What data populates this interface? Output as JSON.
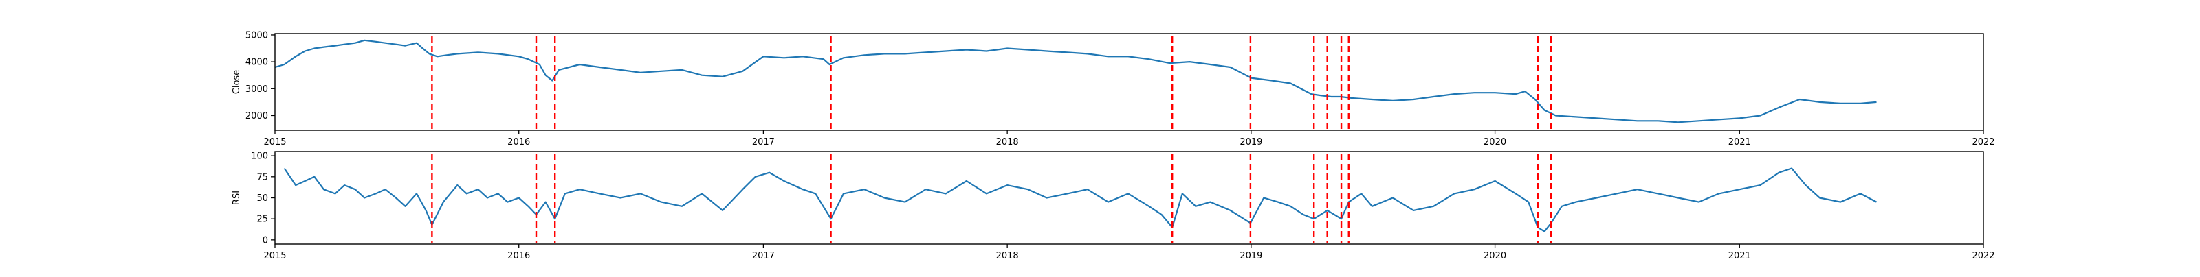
{
  "chart_data": [
    {
      "type": "line",
      "ylabel": "Close",
      "xlabel": "",
      "title": "",
      "xlim": [
        "2015-01-01",
        "2022-01-01"
      ],
      "ylim": [
        1450,
        5050
      ],
      "yticks": [
        2000,
        3000,
        4000,
        5000
      ],
      "xticks": [
        "2015",
        "2016",
        "2017",
        "2018",
        "2019",
        "2020",
        "2021",
        "2022"
      ],
      "line_color": "#1f77b4",
      "series": [
        {
          "x": [
            "2015-01-01",
            "2015-01-15",
            "2015-02-01",
            "2015-02-15",
            "2015-03-01",
            "2015-03-15",
            "2015-04-01",
            "2015-04-15",
            "2015-05-01",
            "2015-05-15",
            "2015-06-01",
            "2015-06-15",
            "2015-07-01",
            "2015-07-15",
            "2015-08-01",
            "2015-08-10",
            "2015-08-20",
            "2015-09-01",
            "2015-09-15",
            "2015-10-01",
            "2015-11-01",
            "2015-12-01",
            "2016-01-01",
            "2016-01-15",
            "2016-02-01",
            "2016-02-10",
            "2016-02-20",
            "2016-03-01",
            "2016-04-01",
            "2016-05-01",
            "2016-06-01",
            "2016-07-01",
            "2016-08-01",
            "2016-09-01",
            "2016-10-01",
            "2016-11-01",
            "2016-12-01",
            "2017-01-01",
            "2017-02-01",
            "2017-03-01",
            "2017-04-01",
            "2017-04-10",
            "2017-05-01",
            "2017-06-01",
            "2017-07-01",
            "2017-08-01",
            "2017-09-01",
            "2017-10-01",
            "2017-11-01",
            "2017-12-01",
            "2018-01-01",
            "2018-02-01",
            "2018-03-01",
            "2018-04-01",
            "2018-05-01",
            "2018-06-01",
            "2018-07-01",
            "2018-08-01",
            "2018-09-01",
            "2018-10-01",
            "2018-11-01",
            "2018-12-01",
            "2019-01-01",
            "2019-02-01",
            "2019-03-01",
            "2019-04-01",
            "2019-04-15",
            "2019-05-01",
            "2019-05-15",
            "2019-06-01",
            "2019-07-01",
            "2019-08-01",
            "2019-09-01",
            "2019-10-01",
            "2019-11-01",
            "2019-12-01",
            "2020-01-01",
            "2020-02-01",
            "2020-02-15",
            "2020-03-01",
            "2020-03-15",
            "2020-04-01",
            "2020-05-01",
            "2020-06-01",
            "2020-07-01",
            "2020-08-01",
            "2020-09-01",
            "2020-10-01",
            "2020-11-01",
            "2020-12-01",
            "2021-01-01",
            "2021-02-01",
            "2021-03-01",
            "2021-04-01",
            "2021-05-01",
            "2021-06-01",
            "2021-07-01",
            "2021-07-25"
          ],
          "values": [
            3800,
            3900,
            4200,
            4400,
            4500,
            4550,
            4600,
            4650,
            4700,
            4800,
            4750,
            4700,
            4650,
            4600,
            4700,
            4500,
            4300,
            4200,
            4250,
            4300,
            4350,
            4300,
            4200,
            4100,
            3900,
            3500,
            3300,
            3700,
            3900,
            3800,
            3700,
            3600,
            3650,
            3700,
            3500,
            3450,
            3650,
            4200,
            4150,
            4200,
            4100,
            3900,
            4150,
            4250,
            4300,
            4300,
            4350,
            4400,
            4450,
            4400,
            4500,
            4450,
            4400,
            4350,
            4300,
            4200,
            4200,
            4100,
            3950,
            4000,
            3900,
            3800,
            3400,
            3300,
            3200,
            2800,
            2750,
            2700,
            2700,
            2650,
            2600,
            2550,
            2600,
            2700,
            2800,
            2850,
            2850,
            2800,
            2900,
            2600,
            2200,
            2000,
            1950,
            1900,
            1850,
            1800,
            1800,
            1750,
            1800,
            1850,
            1900,
            2000,
            2300,
            2600,
            2500,
            2450,
            2450,
            2500
          ]
        }
      ],
      "vlines": [
        "2015-08-24",
        "2016-01-27",
        "2016-02-24",
        "2017-04-12",
        "2018-09-05",
        "2018-12-31",
        "2019-04-05",
        "2019-04-25",
        "2019-05-16",
        "2019-05-27",
        "2020-03-05",
        "2020-03-25"
      ],
      "vline_color": "#ff0000"
    },
    {
      "type": "line",
      "ylabel": "RSI",
      "xlabel": "",
      "title": "",
      "xlim": [
        "2015-01-01",
        "2022-01-01"
      ],
      "ylim": [
        -5,
        105
      ],
      "yticks": [
        0,
        25,
        50,
        75,
        100
      ],
      "xticks": [
        "2015",
        "2016",
        "2017",
        "2018",
        "2019",
        "2020",
        "2021",
        "2022"
      ],
      "line_color": "#1f77b4",
      "series": [
        {
          "x": [
            "2015-01-15",
            "2015-02-01",
            "2015-02-15",
            "2015-03-01",
            "2015-03-15",
            "2015-04-01",
            "2015-04-15",
            "2015-05-01",
            "2015-05-15",
            "2015-06-01",
            "2015-06-15",
            "2015-07-01",
            "2015-07-15",
            "2015-08-01",
            "2015-08-15",
            "2015-08-24",
            "2015-09-10",
            "2015-10-01",
            "2015-10-15",
            "2015-11-01",
            "2015-11-15",
            "2015-12-01",
            "2015-12-15",
            "2016-01-01",
            "2016-01-15",
            "2016-01-27",
            "2016-02-10",
            "2016-02-24",
            "2016-03-10",
            "2016-04-01",
            "2016-05-01",
            "2016-06-01",
            "2016-07-01",
            "2016-08-01",
            "2016-09-01",
            "2016-10-01",
            "2016-11-01",
            "2016-12-01",
            "2016-12-20",
            "2017-01-10",
            "2017-02-01",
            "2017-03-01",
            "2017-03-20",
            "2017-04-12",
            "2017-05-01",
            "2017-06-01",
            "2017-07-01",
            "2017-08-01",
            "2017-09-01",
            "2017-10-01",
            "2017-11-01",
            "2017-12-01",
            "2018-01-01",
            "2018-02-01",
            "2018-03-01",
            "2018-04-01",
            "2018-05-01",
            "2018-06-01",
            "2018-07-01",
            "2018-08-01",
            "2018-08-20",
            "2018-09-05",
            "2018-09-20",
            "2018-10-10",
            "2018-11-01",
            "2018-12-01",
            "2018-12-31",
            "2019-01-20",
            "2019-02-10",
            "2019-03-01",
            "2019-03-20",
            "2019-04-05",
            "2019-04-25",
            "2019-05-16",
            "2019-05-27",
            "2019-06-15",
            "2019-07-01",
            "2019-08-01",
            "2019-09-01",
            "2019-10-01",
            "2019-11-01",
            "2019-12-01",
            "2020-01-01",
            "2020-02-01",
            "2020-02-20",
            "2020-03-05",
            "2020-03-15",
            "2020-03-25",
            "2020-04-10",
            "2020-05-01",
            "2020-06-01",
            "2020-07-01",
            "2020-08-01",
            "2020-09-01",
            "2020-10-01",
            "2020-11-01",
            "2020-12-01",
            "2021-01-01",
            "2021-02-01",
            "2021-03-01",
            "2021-03-20",
            "2021-04-10",
            "2021-05-01",
            "2021-06-01",
            "2021-07-01",
            "2021-07-25"
          ],
          "values": [
            85,
            65,
            70,
            75,
            60,
            55,
            65,
            60,
            50,
            55,
            60,
            50,
            40,
            55,
            35,
            18,
            45,
            65,
            55,
            60,
            50,
            55,
            45,
            50,
            40,
            30,
            45,
            25,
            55,
            60,
            55,
            50,
            55,
            45,
            40,
            55,
            35,
            60,
            75,
            80,
            70,
            60,
            55,
            25,
            55,
            60,
            50,
            45,
            60,
            55,
            70,
            55,
            65,
            60,
            50,
            55,
            60,
            45,
            55,
            40,
            30,
            15,
            55,
            40,
            45,
            35,
            20,
            50,
            45,
            40,
            30,
            25,
            35,
            25,
            45,
            55,
            40,
            50,
            35,
            40,
            55,
            60,
            70,
            55,
            45,
            15,
            10,
            20,
            40,
            45,
            50,
            55,
            60,
            55,
            50,
            45,
            55,
            60,
            65,
            80,
            85,
            65,
            50,
            45,
            55,
            45
          ]
        }
      ],
      "vlines": [
        "2015-08-24",
        "2016-01-27",
        "2016-02-24",
        "2017-04-12",
        "2018-09-05",
        "2018-12-31",
        "2019-04-05",
        "2019-04-25",
        "2019-05-16",
        "2019-05-27",
        "2020-03-05",
        "2020-03-25"
      ],
      "vline_color": "#ff0000"
    }
  ]
}
